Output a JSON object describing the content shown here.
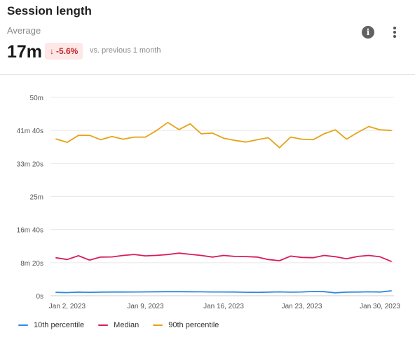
{
  "header": {
    "title": "Session length",
    "subtitle": "Average",
    "value": "17m",
    "change": "-5.6%",
    "change_arrow": "↓",
    "comparison": "vs. previous 1 month",
    "info_icon": "i"
  },
  "chart_data": {
    "type": "line",
    "title": "",
    "xlabel": "",
    "ylabel": "",
    "x_tick_labels": [
      "Jan 2, 2023",
      "Jan 9, 2023",
      "Jan 16, 2023",
      "Jan 23, 2023",
      "Jan 30, 2023"
    ],
    "x_tick_days": [
      2,
      9,
      16,
      23,
      30
    ],
    "y_tick_labels": [
      "0s",
      "8m 20s",
      "16m 40s",
      "25m",
      "33m 20s",
      "41m 40s",
      "50m"
    ],
    "y_tick_values": [
      0,
      500,
      1000,
      1500,
      2000,
      2500,
      3000
    ],
    "y_unit": "seconds",
    "ylim": [
      0,
      3000
    ],
    "x_days": [
      1,
      2,
      3,
      4,
      5,
      6,
      7,
      8,
      9,
      10,
      11,
      12,
      13,
      14,
      15,
      16,
      17,
      18,
      19,
      20,
      21,
      22,
      23,
      24,
      25,
      26,
      27,
      28,
      29,
      30,
      31
    ],
    "series": [
      {
        "name": "10th percentile",
        "color": "#2e88e0",
        "values": [
          51,
          48,
          55,
          52,
          55,
          56,
          56,
          57,
          58,
          60,
          61,
          62,
          60,
          59,
          57,
          57,
          56,
          53,
          51,
          55,
          58,
          54,
          57,
          65,
          62,
          44,
          55,
          56,
          59,
          56,
          74
        ]
      },
      {
        "name": "Median",
        "color": "#d81b60",
        "values": [
          575,
          548,
          605,
          540,
          585,
          587,
          610,
          624,
          603,
          611,
          623,
          644,
          626,
          610,
          585,
          610,
          595,
          593,
          585,
          548,
          530,
          600,
          580,
          576,
          610,
          590,
          560,
          595,
          610,
          589,
          520
        ]
      },
      {
        "name": "90th percentile",
        "color": "#e6a217",
        "values": [
          2370,
          2320,
          2425,
          2427,
          2360,
          2410,
          2368,
          2400,
          2400,
          2500,
          2620,
          2513,
          2600,
          2450,
          2460,
          2383,
          2350,
          2325,
          2360,
          2390,
          2240,
          2400,
          2368,
          2360,
          2450,
          2510,
          2368,
          2470,
          2560,
          2510,
          2500
        ]
      }
    ],
    "grid": true,
    "legend_position": "bottom-left"
  }
}
